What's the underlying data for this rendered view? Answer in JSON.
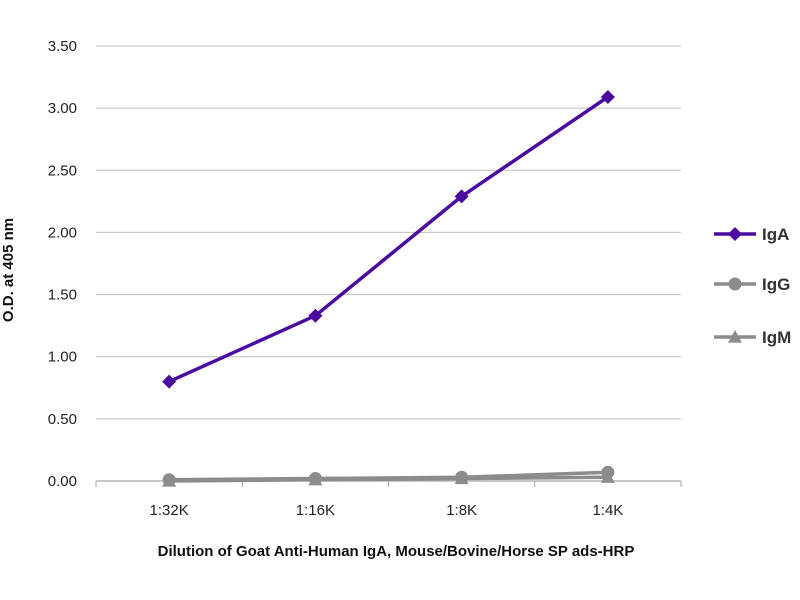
{
  "chart_data": {
    "type": "line",
    "categories": [
      "1:32K",
      "1:16K",
      "1:8K",
      "1:4K"
    ],
    "series": [
      {
        "name": "IgA",
        "color": "#4B0AA0",
        "marker": "diamond",
        "values": [
          0.8,
          1.33,
          2.29,
          3.09
        ]
      },
      {
        "name": "IgG",
        "color": "#8C8C8C",
        "marker": "circle",
        "values": [
          0.01,
          0.02,
          0.03,
          0.07
        ]
      },
      {
        "name": "IgM",
        "color": "#8C8C8C",
        "marker": "triangle",
        "values": [
          0.0,
          0.01,
          0.02,
          0.03
        ]
      }
    ],
    "xlabel": "Dilution of Goat Anti-Human IgA, Mouse/Bovine/Horse SP ads-HRP",
    "ylabel": "O.D. at 405 nm",
    "ylim": [
      0,
      3.5
    ],
    "yticks": [
      "0.00",
      "0.50",
      "1.00",
      "1.50",
      "2.00",
      "2.50",
      "3.00",
      "3.50"
    ],
    "grid": "horizontal",
    "legend": "right"
  }
}
